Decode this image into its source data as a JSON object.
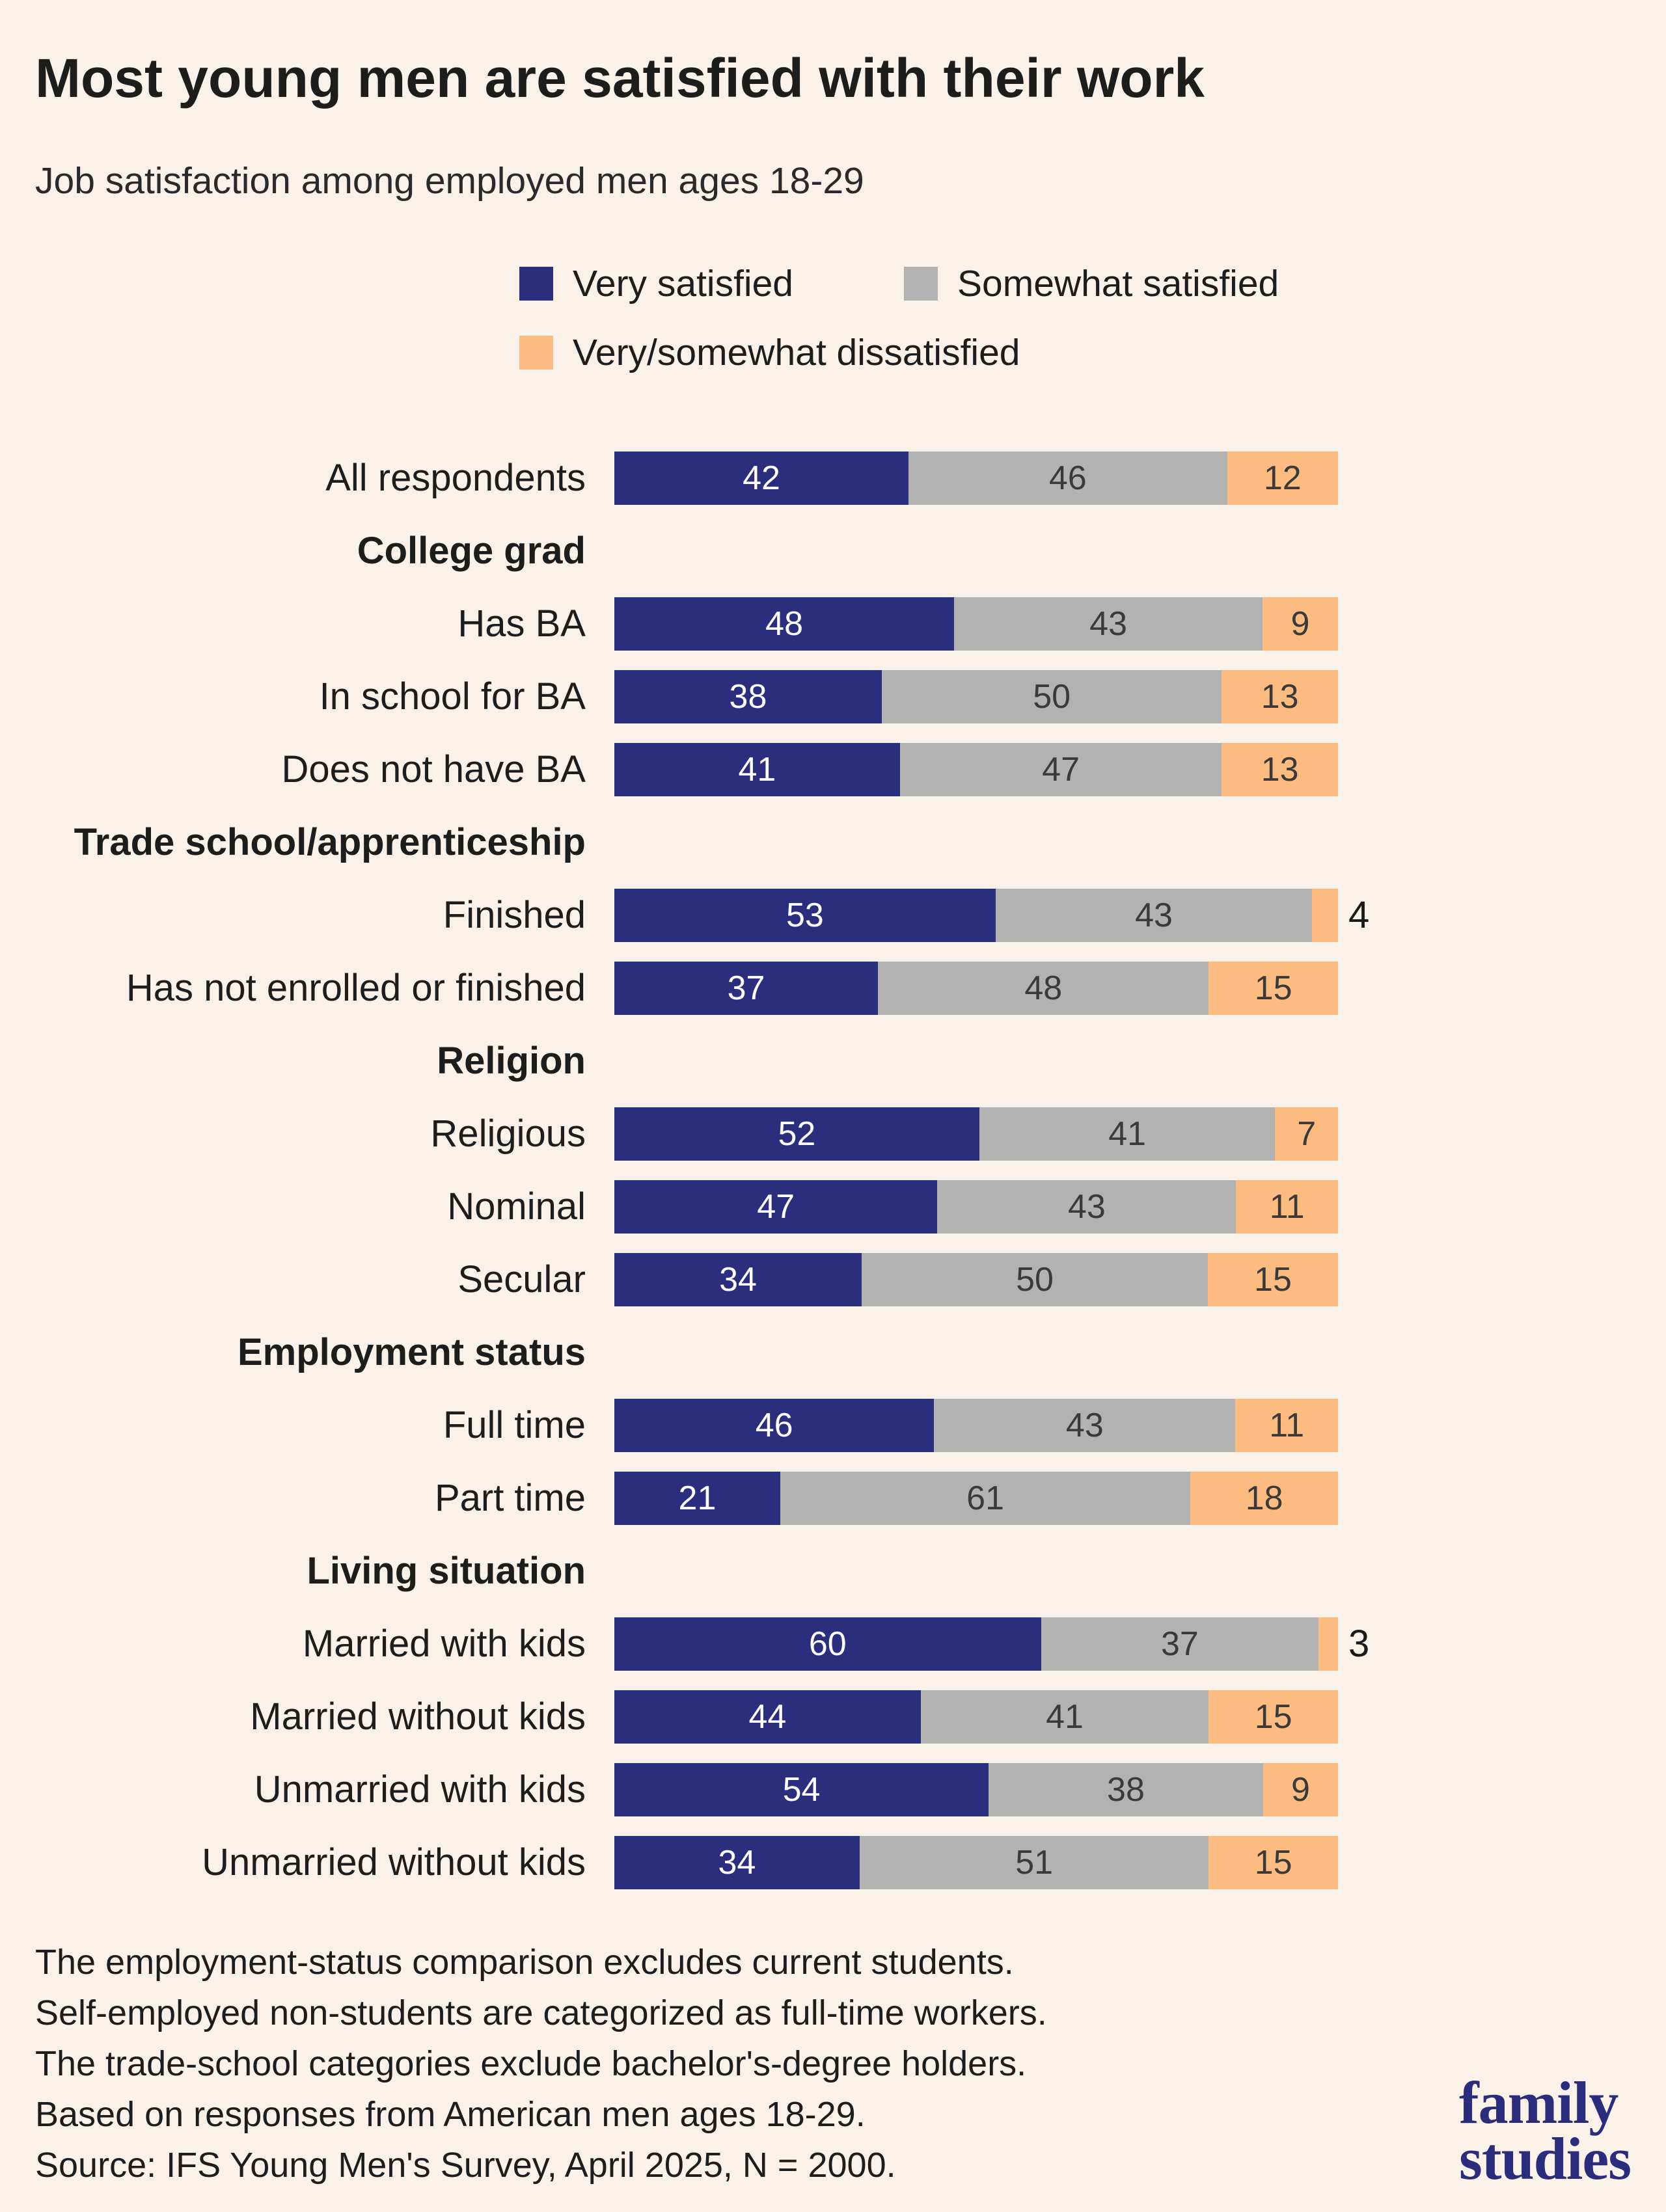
{
  "title": "Most young men are satisfied with their work",
  "subtitle": "Job satisfaction among employed men ages 18-29",
  "legend": [
    {
      "label": "Very satisfied",
      "color": "#2b2e7d"
    },
    {
      "label": "Somewhat satisfied",
      "color": "#b2b2b2"
    },
    {
      "label": "Very/somewhat dissatisfied",
      "color": "#fcbc81"
    }
  ],
  "chart_data": {
    "type": "bar",
    "orientation": "horizontal",
    "stacked": true,
    "value_unit": "percent",
    "xlim": [
      0,
      100
    ],
    "series_names": [
      "Very satisfied",
      "Somewhat satisfied",
      "Very/somewhat dissatisfied"
    ],
    "rows": [
      {
        "kind": "row",
        "label": "All respondents",
        "values": [
          42,
          46,
          12
        ]
      },
      {
        "kind": "header",
        "label": "College grad"
      },
      {
        "kind": "row",
        "label": "Has BA",
        "values": [
          48,
          43,
          9
        ]
      },
      {
        "kind": "row",
        "label": "In school for BA",
        "values": [
          38,
          50,
          13
        ]
      },
      {
        "kind": "row",
        "label": "Does not have BA",
        "values": [
          41,
          47,
          13
        ]
      },
      {
        "kind": "header",
        "label": "Trade school/apprenticeship"
      },
      {
        "kind": "row",
        "label": "Finished",
        "values": [
          53,
          43,
          4
        ]
      },
      {
        "kind": "row",
        "label": "Has not enrolled or finished",
        "values": [
          37,
          48,
          15
        ]
      },
      {
        "kind": "header",
        "label": "Religion"
      },
      {
        "kind": "row",
        "label": "Religious",
        "values": [
          52,
          41,
          7
        ]
      },
      {
        "kind": "row",
        "label": "Nominal",
        "values": [
          47,
          43,
          11
        ]
      },
      {
        "kind": "row",
        "label": "Secular",
        "values": [
          34,
          50,
          15
        ]
      },
      {
        "kind": "header",
        "label": "Employment status"
      },
      {
        "kind": "row",
        "label": "Full time",
        "values": [
          46,
          43,
          11
        ]
      },
      {
        "kind": "row",
        "label": "Part time",
        "values": [
          21,
          61,
          18
        ]
      },
      {
        "kind": "header",
        "label": "Living situation"
      },
      {
        "kind": "row",
        "label": "Married with kids",
        "values": [
          60,
          37,
          3
        ]
      },
      {
        "kind": "row",
        "label": "Married without kids",
        "values": [
          44,
          41,
          15
        ]
      },
      {
        "kind": "row",
        "label": "Unmarried with kids",
        "values": [
          54,
          38,
          9
        ]
      },
      {
        "kind": "row",
        "label": "Unmarried without kids",
        "values": [
          34,
          51,
          15
        ]
      }
    ]
  },
  "footnotes": [
    "The employment-status comparison excludes current students.",
    "Self-employed non-students are categorized as full-time workers.",
    "The trade-school categories exclude bachelor's-degree holders.",
    "Based on responses from American men ages 18-29.",
    "Source: IFS Young Men's Survey, April 2025, N = 2000."
  ],
  "logo": {
    "line1": "family",
    "line2": "studies"
  }
}
